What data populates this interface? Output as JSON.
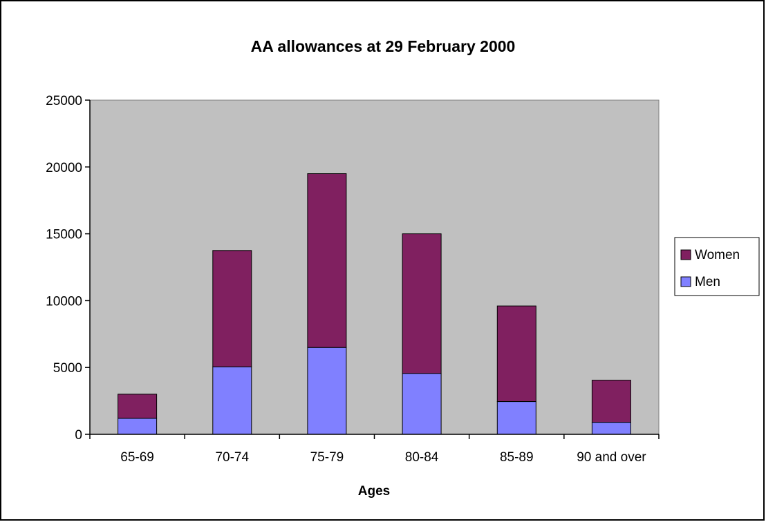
{
  "chart_data": {
    "type": "bar",
    "stacked": true,
    "title": "AA allowances at 29 February 2000",
    "xlabel": "Ages",
    "ylabel": "",
    "categories": [
      "65-69",
      "70-74",
      "75-79",
      "80-84",
      "85-89",
      "90 and over"
    ],
    "series": [
      {
        "name": "Men",
        "color": "#8080ff",
        "values": [
          1200,
          5050,
          6500,
          4550,
          2450,
          900
        ]
      },
      {
        "name": "Women",
        "color": "#802060",
        "values": [
          1800,
          8700,
          13000,
          10450,
          7150,
          3150
        ]
      }
    ],
    "ylim": [
      0,
      25000
    ],
    "yticks": [
      "0",
      "5000",
      "10000",
      "15000",
      "20000",
      "25000"
    ],
    "grid": false,
    "plot_background": "#c0c0c0",
    "legend": {
      "position": "right",
      "order": [
        "Women",
        "Men"
      ]
    }
  }
}
